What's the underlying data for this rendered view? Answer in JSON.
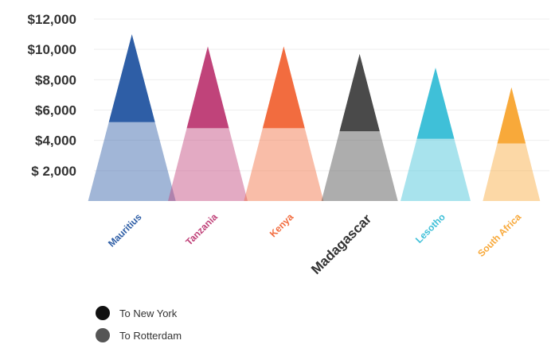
{
  "chart_data": {
    "type": "bar",
    "title": "",
    "xlabel": "",
    "ylabel": "",
    "categories": [
      "Mauritius",
      "Tanzania",
      "Kenya",
      "Madagascar",
      "Lesotho",
      "South Africa"
    ],
    "category_colors": [
      "#2e5ea6",
      "#c0437a",
      "#f26c3f",
      "#4a4a4a",
      "#3fc0d8",
      "#f8a93a"
    ],
    "series": [
      {
        "name": "To Rotterdam",
        "values": [
          5200,
          4800,
          4800,
          4600,
          4100,
          3800
        ]
      },
      {
        "name": "To New York",
        "values": [
          11000,
          10200,
          10200,
          9700,
          8800,
          7500
        ]
      }
    ],
    "ylim": [
      0,
      12000
    ],
    "yticks": [
      {
        "value": 2000,
        "label": "$ 2,000"
      },
      {
        "value": 4000,
        "label": "$4,000"
      },
      {
        "value": 6000,
        "label": "$6,000"
      },
      {
        "value": 8000,
        "label": "$8,000"
      },
      {
        "value": 10000,
        "label": "$10,000"
      },
      {
        "value": 12000,
        "label": "$12,000"
      }
    ],
    "grid": true,
    "legend_position": "bottom-left"
  },
  "legend": {
    "items": [
      {
        "label": "To New York",
        "color": "#111111"
      },
      {
        "label": "To Rotterdam",
        "color": "#555555"
      }
    ]
  }
}
